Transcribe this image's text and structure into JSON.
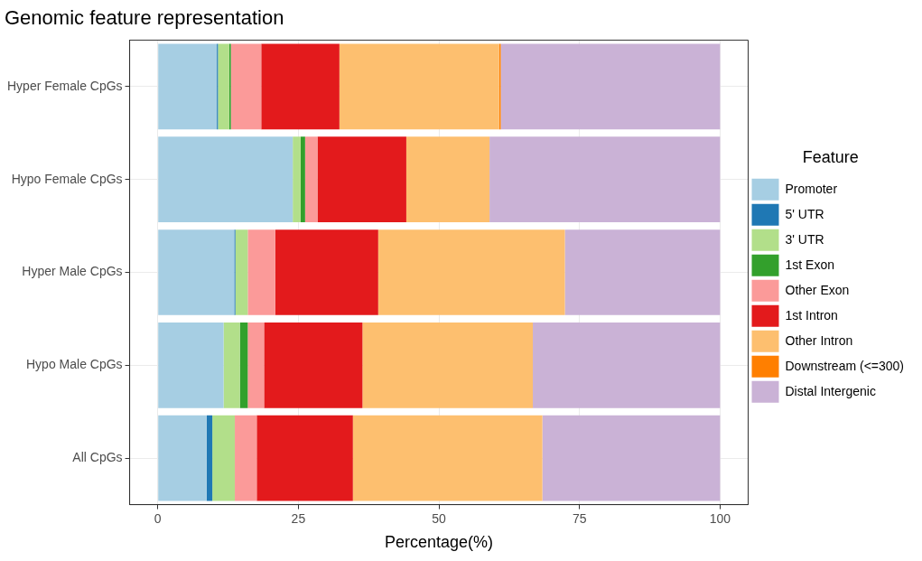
{
  "chart_data": {
    "type": "bar",
    "orientation": "horizontal",
    "stacked": true,
    "title": "Genomic feature representation",
    "xlabel": "Percentage(%)",
    "legend_title": "Feature",
    "legend": "right",
    "grid": true,
    "categories": [
      "Hyper Female CpGs",
      "Hypo Female CpGs",
      "Hyper Male CpGs",
      "Hypo Male CpGs",
      "All CpGs"
    ],
    "xlim": [
      -5,
      105
    ],
    "xticks": [
      0,
      25,
      50,
      75,
      100
    ],
    "series": [
      {
        "name": "Promoter",
        "color": "#a6cee3",
        "values": [
          10.5,
          24.0,
          13.6,
          11.7,
          8.7
        ]
      },
      {
        "name": "5' UTR",
        "color": "#1f78b4",
        "values": [
          0.2,
          0,
          0.2,
          0,
          1.0
        ]
      },
      {
        "name": "3' UTR",
        "color": "#b2df8a",
        "values": [
          2.0,
          1.4,
          2.2,
          2.9,
          4.0
        ]
      },
      {
        "name": "1st Exon",
        "color": "#33a02c",
        "values": [
          0.3,
          0.8,
          0,
          1.4,
          0
        ]
      },
      {
        "name": "Other Exon",
        "color": "#fb9a99",
        "values": [
          5.4,
          2.2,
          4.9,
          2.9,
          3.9
        ]
      },
      {
        "name": "1st Intron",
        "color": "#e31a1c",
        "values": [
          13.9,
          15.8,
          18.3,
          17.5,
          17.1
        ]
      },
      {
        "name": "Other Intron",
        "color": "#fdbf6f",
        "values": [
          28.4,
          14.8,
          33.2,
          30.3,
          33.7
        ]
      },
      {
        "name": "Downstream (<=300)",
        "color": "#ff7f00",
        "values": [
          0.3,
          0,
          0,
          0,
          0
        ]
      },
      {
        "name": "Distal Intergenic",
        "color": "#cab2d6",
        "values": [
          39.0,
          41.0,
          27.6,
          33.3,
          31.6
        ]
      }
    ]
  }
}
